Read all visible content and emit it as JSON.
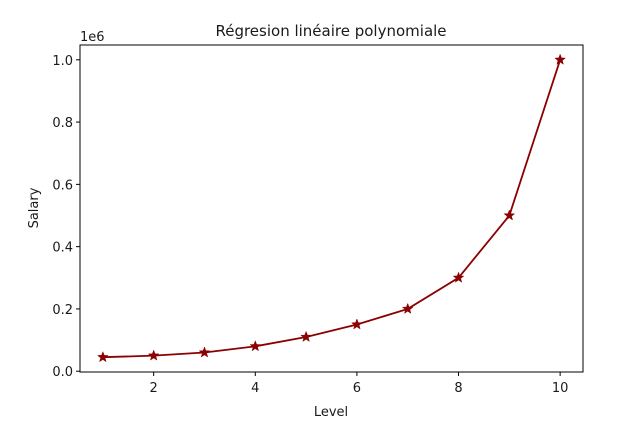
{
  "chart_data": {
    "type": "line",
    "title": "Régresion linéaire polynomiale",
    "xlabel": "Level",
    "ylabel": "Salary",
    "y_scale_multiplier": "1e6",
    "x": [
      1,
      2,
      3,
      4,
      5,
      6,
      7,
      8,
      9,
      10
    ],
    "series": [
      {
        "values": [
          0.045,
          0.05,
          0.06,
          0.08,
          0.11,
          0.15,
          0.2,
          0.3,
          0.5,
          1.0
        ],
        "color": "#8b0000",
        "marker": "star"
      }
    ],
    "xlim": [
      0.55,
      10.45
    ],
    "ylim": [
      -0.0025,
      1.0475
    ],
    "xticks": [
      2,
      4,
      6,
      8,
      10
    ],
    "xtick_labels": [
      "2",
      "4",
      "6",
      "8",
      "10"
    ],
    "yticks": [
      0.0,
      0.2,
      0.4,
      0.6,
      0.8,
      1.0
    ],
    "ytick_labels": [
      "0.0",
      "0.2",
      "0.4",
      "0.6",
      "0.8",
      "1.0"
    ],
    "grid": false,
    "legend": "none"
  }
}
